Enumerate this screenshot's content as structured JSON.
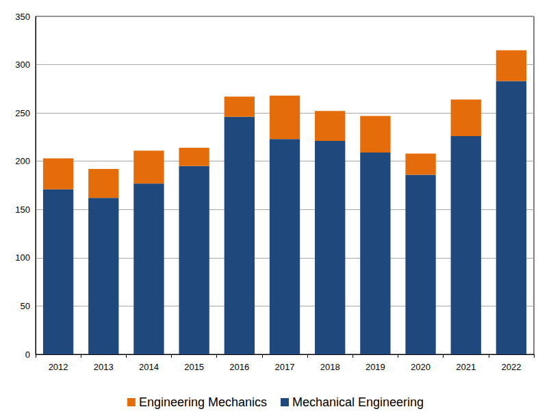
{
  "chart_data": {
    "type": "bar",
    "stacked": true,
    "grid": true,
    "legend": "bottom",
    "categories": [
      "2012",
      "2013",
      "2014",
      "2015",
      "2016",
      "2017",
      "2018",
      "2019",
      "2020",
      "2021",
      "2022"
    ],
    "series": [
      {
        "name": "Mechanical Engineering",
        "color": "#1f497d",
        "values": [
          171,
          162,
          177,
          195,
          246,
          223,
          221,
          209,
          186,
          226,
          283
        ]
      },
      {
        "name": "Engineering Mechanics",
        "color": "#e46c0a",
        "values": [
          32,
          30,
          34,
          19,
          21,
          45,
          31,
          38,
          22,
          38,
          32
        ]
      }
    ],
    "ylim": [
      0,
      350
    ],
    "yticks": [
      0,
      50,
      100,
      150,
      200,
      250,
      300,
      350
    ]
  }
}
